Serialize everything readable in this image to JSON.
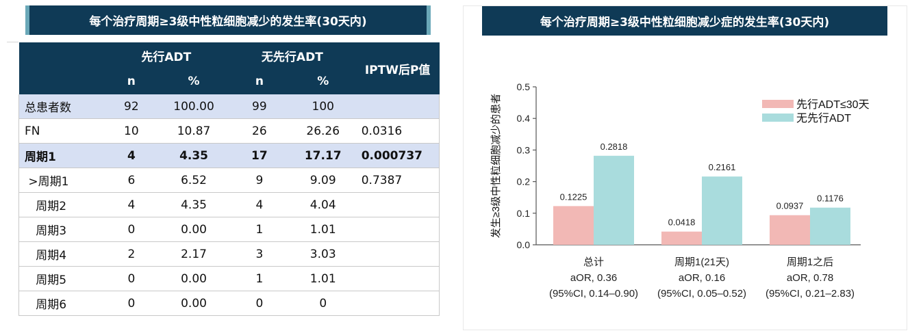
{
  "left": {
    "title": "每个治疗周期≥3级中性粒细胞减少的发生率(30天内)",
    "table": {
      "group_headers": [
        "先行ADT",
        "无先行ADT"
      ],
      "pvalue_header": "IPTW后P值",
      "sub_headers": [
        "n",
        "%",
        "n",
        "%"
      ],
      "rows": [
        {
          "label": "总患者数",
          "n1": "92",
          "p1": "100.00",
          "n2": "99",
          "p2": "100",
          "pv": "",
          "style": "shade"
        },
        {
          "label": "FN",
          "n1": "10",
          "p1": "10.87",
          "n2": "26",
          "p2": "26.26",
          "pv": "0.0316",
          "style": ""
        },
        {
          "label": "周期1",
          "n1": "4",
          "p1": "4.35",
          "n2": "17",
          "p2": "17.17",
          "pv": "0.000737",
          "style": "shade bold"
        },
        {
          "label": " >周期1",
          "n1": "6",
          "p1": "6.52",
          "n2": "9",
          "p2": "9.09",
          "pv": "0.7387",
          "style": ""
        },
        {
          "label": "   周期2",
          "n1": "4",
          "p1": "4.35",
          "n2": "4",
          "p2": "4.04",
          "pv": "",
          "style": ""
        },
        {
          "label": "   周期3",
          "n1": "0",
          "p1": "0.00",
          "n2": "1",
          "p2": "1.01",
          "pv": "",
          "style": ""
        },
        {
          "label": "   周期4",
          "n1": "2",
          "p1": "2.17",
          "n2": "3",
          "p2": "3.03",
          "pv": "",
          "style": ""
        },
        {
          "label": "   周期5",
          "n1": "0",
          "p1": "0.00",
          "n2": "1",
          "p2": "1.01",
          "pv": "",
          "style": ""
        },
        {
          "label": "   周期6",
          "n1": "0",
          "p1": "0.00",
          "n2": "0",
          "p2": "0",
          "pv": "",
          "style": ""
        }
      ]
    }
  },
  "right": {
    "title": "每个治疗周期≥3级中性粒细胞减少症的发生率(30天内)"
  },
  "colors": {
    "header_bg": "#0f3a56",
    "row_shade": "#d7e0f3",
    "series_prior": "#f2b8b5",
    "series_none": "#a9dcdd"
  },
  "chart_data": {
    "type": "bar",
    "title": "每个治疗周期≥3级中性粒细胞减少症的发生率(30天内)",
    "ylabel": "发生≥3级中性粒细胞减少的患者",
    "ylim": [
      0,
      0.5
    ],
    "yticks": [
      "0.0",
      "0.1",
      "0.2",
      "0.3",
      "0.4",
      "0.5"
    ],
    "categories": [
      [
        "总计",
        "aOR, 0.36",
        "(95%CI, 0.14–0.90)"
      ],
      [
        "周期1(21天)",
        "aOR, 0.16",
        "(95%CI, 0.05–0.52)"
      ],
      [
        "周期1之后",
        "aOR, 0.78",
        "(95%CI, 0.21–2.83)"
      ]
    ],
    "series": [
      {
        "name": "先行ADT≤30天",
        "values": [
          0.1225,
          0.0418,
          0.0937
        ],
        "labels": [
          "0.1225",
          "0.0418",
          "0.0937"
        ],
        "color": "#f2b8b5"
      },
      {
        "name": "无先行ADT",
        "values": [
          0.2818,
          0.2161,
          0.1176
        ],
        "labels": [
          "0.2818",
          "0.2161",
          "0.1176"
        ],
        "color": "#a9dcdd"
      }
    ],
    "legend": "top-right",
    "grid": false
  }
}
